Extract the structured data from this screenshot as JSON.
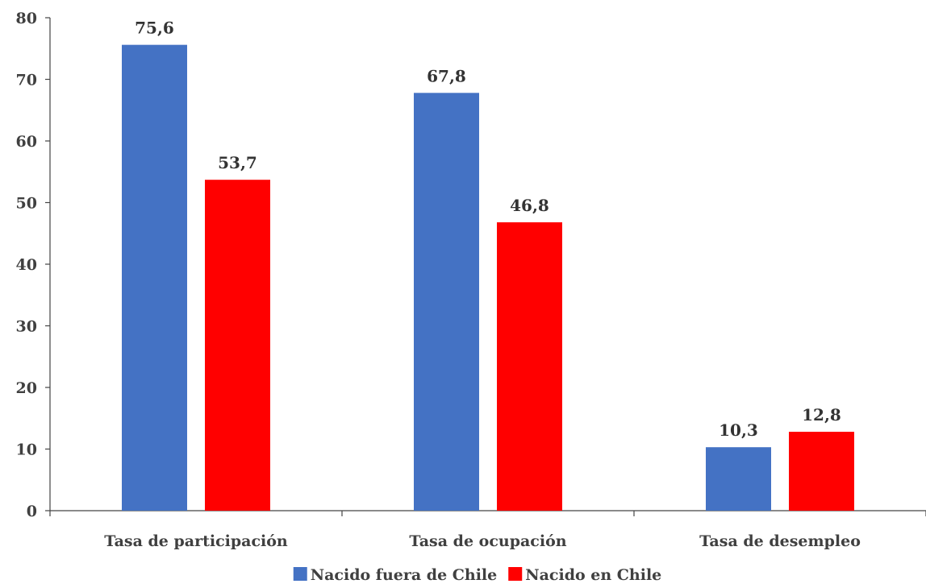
{
  "chart_data": {
    "type": "bar",
    "categories": [
      "Tasa de participación",
      "Tasa de ocupación",
      "Tasa de desempleo"
    ],
    "series": [
      {
        "name": "Nacido fuera de Chile",
        "values": [
          75.6,
          67.8,
          10.3
        ],
        "labels": [
          "75,6",
          "67,8",
          "10,3"
        ],
        "color": "#4472C4"
      },
      {
        "name": "Nacido en Chile",
        "values": [
          53.7,
          46.8,
          12.8
        ],
        "labels": [
          "53,7",
          "46,8",
          "12,8"
        ],
        "color": "#FF0000"
      }
    ],
    "ylim": [
      0,
      80
    ],
    "yticks": [
      "0",
      "10",
      "20",
      "30",
      "40",
      "50",
      "60",
      "70",
      "80"
    ],
    "grid": false,
    "legend_position": "bottom",
    "title": "",
    "xlabel": "",
    "ylabel": ""
  }
}
